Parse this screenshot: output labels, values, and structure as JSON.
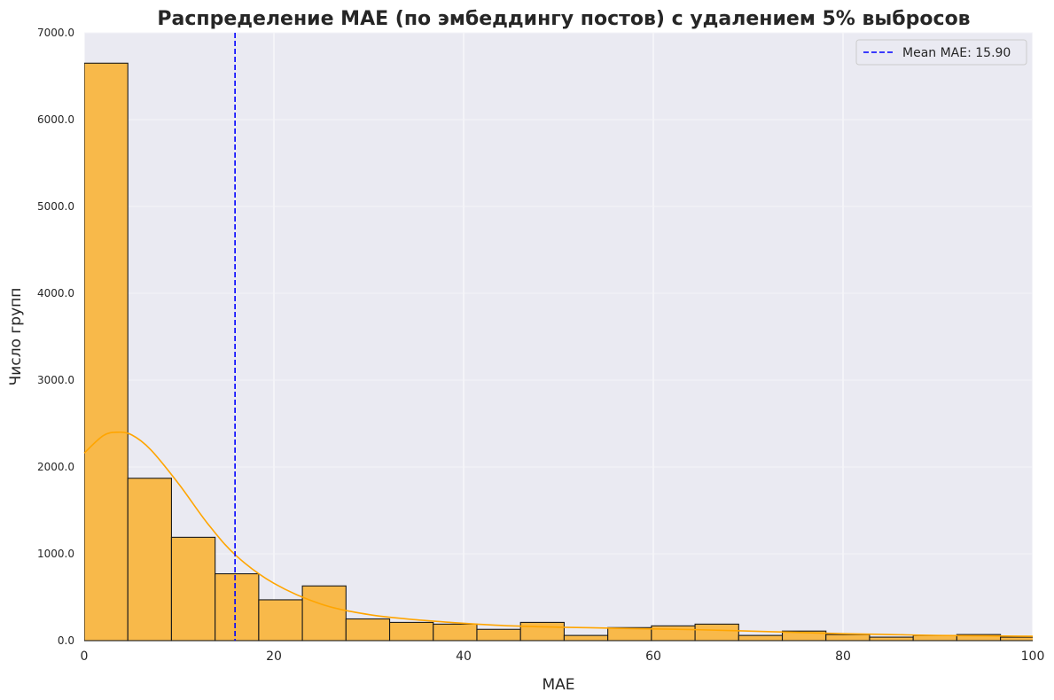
{
  "chart_data": {
    "type": "bar",
    "title": "Распределение MAE (по эмбеддингу постов) с удалением 5% выбросов",
    "xlabel": "MAE",
    "ylabel": "Число групп",
    "xlim": [
      0,
      100
    ],
    "ylim": [
      0,
      7000
    ],
    "xticks": [
      "0",
      "20",
      "40",
      "60",
      "80",
      "100"
    ],
    "yticks": [
      "0.0",
      "1000.0",
      "2000.0",
      "3000.0",
      "4000.0",
      "5000.0",
      "6000.0",
      "7000.0"
    ],
    "bin_edges": [
      0,
      4.6,
      9.2,
      13.8,
      18.4,
      23.0,
      27.6,
      32.2,
      36.8,
      41.4,
      46.0,
      50.6,
      55.2,
      59.8,
      64.4,
      69.0,
      73.6,
      78.2,
      82.8,
      87.4,
      92.0,
      96.6,
      101.2
    ],
    "values": [
      6650,
      1870,
      1190,
      770,
      470,
      630,
      250,
      210,
      190,
      130,
      210,
      60,
      150,
      170,
      190,
      60,
      110,
      70,
      40,
      60,
      70,
      40
    ],
    "kde": {
      "x": [
        0,
        2,
        3.5,
        5,
        7,
        10,
        13,
        16,
        20,
        25,
        30,
        35,
        40,
        45,
        50,
        55,
        60,
        65,
        70,
        75,
        80,
        85,
        90,
        95,
        100
      ],
      "y": [
        2160,
        2360,
        2400,
        2370,
        2200,
        1800,
        1350,
        980,
        660,
        420,
        300,
        240,
        200,
        170,
        155,
        145,
        135,
        125,
        110,
        95,
        80,
        70,
        60,
        55,
        50
      ]
    },
    "mean_line": {
      "x": 15.9,
      "label": "Mean MAE: 15.90",
      "color": "#0000ff"
    },
    "bar_color": "#f8b94a",
    "kde_color": "#ffa500",
    "grid": true,
    "legend": "top-right"
  }
}
